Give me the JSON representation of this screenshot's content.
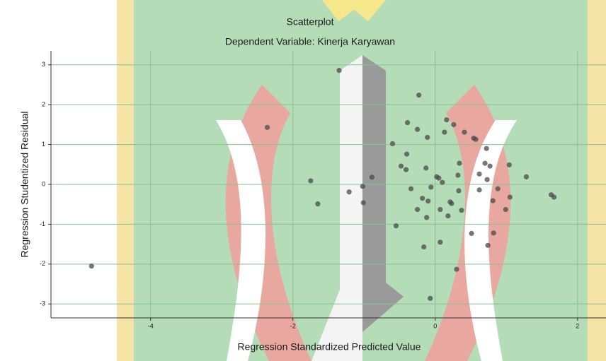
{
  "chart_data": {
    "type": "scatter",
    "title": "Scatterplot",
    "subtitle": "Dependent Variable: Kinerja Karyawan",
    "x_label": "Regression Standardized Predicted Value",
    "y_label": "Regression Studentized Residual",
    "xlim": [
      -5.4,
      2.4
    ],
    "ylim": [
      -3.35,
      3.35
    ],
    "xticks": [
      -4,
      -2,
      0,
      2
    ],
    "yticks": [
      -3,
      -2,
      -1,
      0,
      1,
      2,
      3
    ],
    "grid": true,
    "color": "#4a4a4a",
    "x": [
      -4.83,
      -2.36,
      -1.75,
      -1.65,
      -1.35,
      -1.21,
      -1.02,
      -1.01,
      -0.89,
      -0.6,
      -0.55,
      -0.48,
      -0.41,
      -0.4,
      -0.39,
      -0.34,
      -0.25,
      -0.23,
      -0.25,
      -0.18,
      -0.16,
      -0.13,
      -0.12,
      -0.11,
      -0.1,
      -0.07,
      -0.06,
      0.02,
      0.05,
      0.07,
      0.07,
      0.1,
      0.13,
      0.16,
      0.18,
      0.21,
      0.23,
      0.26,
      0.3,
      0.32,
      0.33,
      0.34,
      0.37,
      0.41,
      0.51,
      0.54,
      0.57,
      0.62,
      0.62,
      0.7,
      0.72,
      0.73,
      0.74,
      0.77,
      0.81,
      0.82,
      0.88,
      0.99,
      1.04,
      1.05,
      1.28,
      1.63,
      1.67
    ],
    "values": [
      -2.05,
      1.43,
      0.09,
      -0.49,
      2.86,
      -0.19,
      -0.05,
      -0.46,
      0.18,
      1.02,
      -1.04,
      0.46,
      0.37,
      0.76,
      1.55,
      -0.11,
      1.38,
      2.24,
      -0.63,
      -0.35,
      -1.57,
      0.41,
      -0.83,
      1.18,
      -0.42,
      -2.86,
      -0.07,
      0.19,
      0.16,
      -0.63,
      -1.45,
      0.05,
      1.31,
      1.62,
      -0.79,
      -0.44,
      -0.48,
      1.5,
      -2.13,
      0.23,
      -0.16,
      0.53,
      -0.65,
      1.31,
      -1.23,
      1.16,
      1.13,
      0.26,
      -0.14,
      0.53,
      0.9,
      0.12,
      -1.53,
      0.46,
      -0.41,
      -1.22,
      -0.11,
      -0.63,
      0.49,
      -0.32,
      0.19,
      -0.26,
      -0.32
    ]
  }
}
